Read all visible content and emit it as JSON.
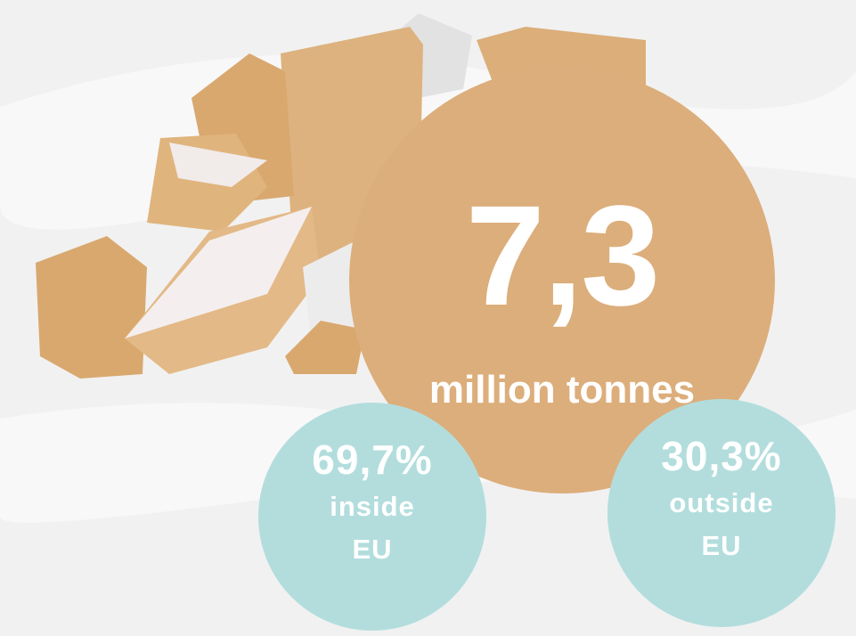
{
  "total": {
    "value": "7,3",
    "unit": "million tonnes"
  },
  "shares": [
    {
      "percent": "69,7%",
      "label": "inside EU"
    },
    {
      "percent": "30,3%",
      "label": "outside EU"
    }
  ]
}
